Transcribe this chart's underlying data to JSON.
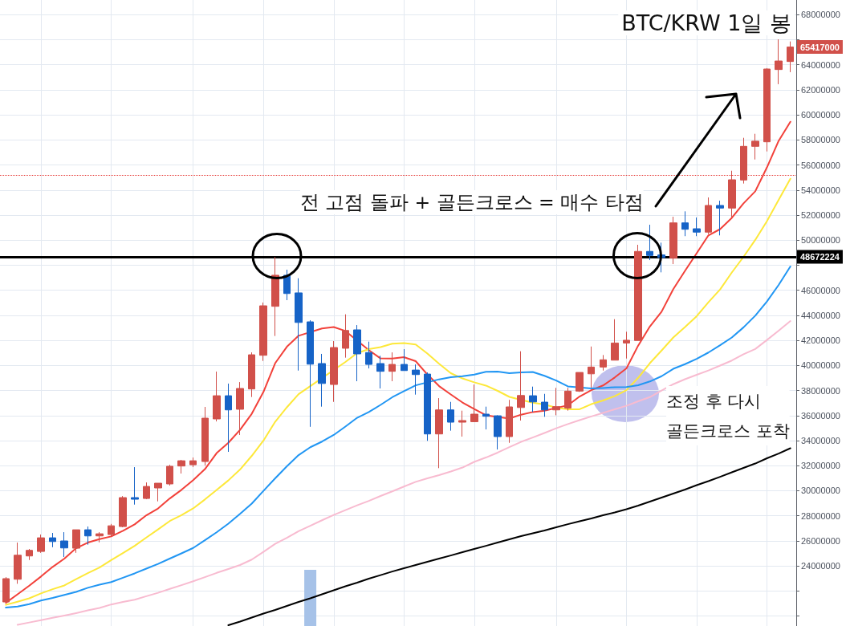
{
  "chart_data": {
    "type": "candlestick",
    "title": "BTC/KRW 1일 봉",
    "categories": [
      null,
      null,
      null,
      null,
      null,
      null,
      null,
      null,
      null,
      null,
      null,
      null,
      null,
      null,
      null,
      null,
      null,
      null,
      null,
      null,
      null,
      null,
      null,
      null,
      null,
      null,
      null,
      null,
      null,
      null,
      null,
      null,
      null,
      null,
      null,
      null,
      null,
      null,
      null,
      null,
      null,
      null,
      null,
      null,
      null,
      null,
      null,
      null,
      null,
      null,
      null,
      null,
      null,
      null,
      null,
      null,
      null,
      null,
      null,
      null,
      null,
      null,
      null,
      null,
      null,
      null,
      null,
      null
    ],
    "ohlc": [
      [
        21120000,
        23100000,
        21120000,
        22980000
      ],
      [
        22930000,
        25860000,
        22570000,
        24850000
      ],
      [
        24790000,
        25350000,
        24470000,
        25240000
      ],
      [
        25150000,
        26500000,
        25040000,
        26240000
      ],
      [
        26240000,
        26630000,
        25490000,
        25940000
      ],
      [
        25990000,
        26690000,
        24710000,
        25430000
      ],
      [
        25410000,
        26880000,
        25040000,
        26880000
      ],
      [
        26880000,
        27140000,
        25690000,
        26390000
      ],
      [
        26390000,
        26690000,
        25880000,
        26560000
      ],
      [
        26500000,
        27350000,
        26350000,
        27200000
      ],
      [
        27140000,
        29570000,
        27080000,
        29450000
      ],
      [
        29450000,
        31880000,
        28890000,
        29320000
      ],
      [
        29380000,
        30660000,
        29320000,
        30340000
      ],
      [
        30220000,
        30600000,
        29150000,
        30600000
      ],
      [
        30540000,
        32070000,
        30410000,
        31950000
      ],
      [
        31970000,
        32460000,
        31370000,
        32390000
      ],
      [
        32070000,
        32650000,
        31880000,
        32390000
      ],
      [
        32330000,
        36690000,
        32010000,
        35790000
      ],
      [
        35730000,
        39510000,
        35530000,
        37580000
      ],
      [
        37580000,
        38550000,
        33100000,
        36450000
      ],
      [
        36500000,
        38670000,
        34450000,
        38160000
      ],
      [
        38120000,
        41040000,
        37480000,
        40850000
      ],
      [
        40810000,
        45020000,
        40360000,
        44760000
      ],
      [
        44720000,
        48650000,
        42350000,
        47200000
      ],
      [
        47200000,
        47640000,
        45210000,
        45740000
      ],
      [
        45790000,
        46960000,
        39590000,
        43430000
      ],
      [
        43480000,
        43610000,
        35100000,
        40100000
      ],
      [
        40150000,
        40920000,
        36710000,
        38560000
      ],
      [
        38480000,
        41940000,
        37090000,
        41430000
      ],
      [
        41370000,
        44080000,
        40620000,
        42790000
      ],
      [
        42840000,
        43220000,
        38740000,
        40920000
      ],
      [
        41030000,
        41900000,
        39760000,
        40080000
      ],
      [
        40150000,
        40770000,
        38160000,
        39530000
      ],
      [
        39530000,
        41040000,
        38740000,
        40080000
      ],
      [
        40080000,
        41300000,
        39590000,
        39590000
      ],
      [
        39630000,
        40080000,
        37670000,
        39270000
      ],
      [
        39310000,
        39440000,
        33980000,
        34530000
      ],
      [
        34530000,
        37390000,
        31800000,
        36450000
      ],
      [
        36450000,
        37090000,
        34790000,
        35470000
      ],
      [
        35470000,
        36390000,
        34320000,
        35600000
      ],
      [
        35510000,
        38480000,
        35490000,
        36110000
      ],
      [
        36110000,
        36710000,
        34890000,
        35940000
      ],
      [
        35980000,
        36020000,
        33290000,
        34320000
      ],
      [
        34320000,
        37250000,
        33820000,
        36690000
      ],
      [
        36640000,
        41130000,
        35600000,
        37600000
      ],
      [
        37580000,
        38310000,
        36280000,
        37090000
      ],
      [
        37070000,
        37730000,
        35900000,
        36450000
      ],
      [
        36450000,
        38210000,
        36020000,
        36710000
      ],
      [
        36600000,
        38210000,
        36390000,
        37950000
      ],
      [
        37950000,
        39440000,
        37880000,
        39440000
      ],
      [
        39330000,
        41510000,
        38210000,
        39870000
      ],
      [
        39870000,
        40830000,
        39590000,
        40450000
      ],
      [
        40420000,
        43690000,
        40420000,
        41790000
      ],
      [
        41790000,
        42690000,
        40550000,
        42010000
      ],
      [
        41990000,
        49630000,
        41990000,
        49100000
      ],
      [
        49100000,
        51230000,
        48410000,
        48780000
      ],
      [
        48820000,
        49800000,
        47430000,
        48610000
      ],
      [
        48560000,
        51870000,
        48090000,
        51380000
      ],
      [
        51380000,
        52300000,
        50320000,
        50870000
      ],
      [
        50910000,
        51810000,
        50320000,
        50640000
      ],
      [
        50640000,
        53410000,
        50480000,
        52770000
      ],
      [
        52770000,
        53150000,
        50380000,
        52560000
      ],
      [
        52560000,
        55540000,
        51830000,
        54820000
      ],
      [
        54800000,
        58170000,
        54520000,
        57490000
      ],
      [
        57490000,
        58490000,
        56440000,
        57900000
      ],
      [
        57850000,
        63730000,
        57080000,
        63660000
      ],
      [
        63620000,
        66030000,
        62450000,
        64300000
      ],
      [
        64260000,
        65860000,
        63410000,
        65417000
      ]
    ],
    "colors": [
      "#d1504a",
      "#d1504a",
      "#d1504a",
      "#d1504a",
      "#1663c7",
      "#1663c7",
      "#d1504a",
      "#1663c7",
      "#d1504a",
      "#d1504a",
      "#d1504a",
      "#1663c7",
      "#d1504a",
      "#d1504a",
      "#d1504a",
      "#d1504a",
      "#d1504a",
      "#d1504a",
      "#d1504a",
      "#1663c7",
      "#d1504a",
      "#d1504a",
      "#d1504a",
      "#d1504a",
      "#1663c7",
      "#1663c7",
      "#1663c7",
      "#1663c7",
      "#d1504a",
      "#d1504a",
      "#1663c7",
      "#1663c7",
      "#1663c7",
      "#d1504a",
      "#1663c7",
      "#1663c7",
      "#1663c7",
      "#d1504a",
      "#1663c7",
      "#d1504a",
      "#d1504a",
      "#1663c7",
      "#1663c7",
      "#d1504a",
      "#d1504a",
      "#1663c7",
      "#1663c7",
      "#d1504a",
      "#d1504a",
      "#d1504a",
      "#d1504a",
      "#d1504a",
      "#d1504a",
      "#d1504a",
      "#d1504a",
      "#1663c7",
      "#1663c7",
      "#d1504a",
      "#1663c7",
      "#1663c7",
      "#d1504a",
      "#1663c7",
      "#d1504a",
      "#d1504a",
      "#d1504a",
      "#d1504a",
      "#d1504a",
      "#d1504a"
    ],
    "series": [
      {
        "type": "bar",
        "color": "#a6c2e8",
        "values": [
          null,
          null,
          null,
          null,
          null,
          null,
          null,
          null,
          null,
          null,
          null,
          null,
          null,
          null,
          null,
          null,
          null,
          null,
          null,
          null,
          null,
          null,
          null,
          null,
          null,
          null,
          23680000,
          null,
          null,
          null,
          null,
          null,
          null,
          null,
          null,
          null,
          null,
          null,
          null,
          null,
          null,
          null,
          null,
          null,
          null,
          null,
          null,
          null,
          null,
          null,
          null,
          null,
          null,
          null,
          null,
          null,
          null,
          null,
          null,
          null,
          null,
          null,
          null,
          null,
          null,
          null,
          null,
          null
        ]
      },
      {
        "type": "line",
        "color": "#f2413a",
        "values": [
          21050000,
          21730000,
          22420000,
          23150000,
          23920000,
          24580000,
          25410000,
          25860000,
          26130000,
          26350000,
          26800000,
          27310000,
          28040000,
          28580000,
          29380000,
          30070000,
          30840000,
          31720000,
          33000000,
          33820000,
          34860000,
          36140000,
          37890000,
          40180000,
          41490000,
          42370000,
          null,
          42950000,
          43060000,
          42750000,
          null,
          41220000,
          40560000,
          40550000,
          40660000,
          40340000,
          39280000,
          38350000,
          37680000,
          37040000,
          36520000,
          36020000,
          null,
          35760000,
          36070000,
          36280000,
          36390000,
          36600000,
          36820000,
          37520000,
          38030000,
          38400000,
          39040000,
          39760000,
          41580000,
          43110000,
          44290000,
          46090000,
          47550000,
          48960000,
          50380000,
          50880000,
          51780000,
          52940000,
          53900000,
          55810000,
          57930000,
          59450000
        ]
      },
      {
        "type": "line",
        "color": "#fde83a",
        "values": [
          20890000,
          21140000,
          21410000,
          21800000,
          22140000,
          22440000,
          22940000,
          23420000,
          23870000,
          24460000,
          25020000,
          25600000,
          26260000,
          26910000,
          27580000,
          28050000,
          28590000,
          29300000,
          30060000,
          30820000,
          31690000,
          32780000,
          34000000,
          35500000,
          36660000,
          37710000,
          38350000,
          null,
          null,
          40280000,
          40980000,
          41300000,
          41460000,
          41730000,
          41790000,
          41670000,
          40950000,
          40130000,
          39380000,
          38960000,
          38650000,
          38390000,
          37970000,
          37490000,
          37250000,
          37030000,
          36880000,
          36620000,
          36500000,
          36500000,
          36910000,
          37200000,
          37550000,
          38030000,
          39010000,
          40180000,
          41190000,
          42230000,
          43060000,
          43930000,
          45040000,
          46070000,
          47420000,
          48670000,
          50020000,
          51520000,
          53220000,
          54900000
        ]
      },
      {
        "type": "line",
        "color": "#2196f3",
        "values": [
          20670000,
          20750000,
          20950000,
          21230000,
          21440000,
          21680000,
          21920000,
          22250000,
          22500000,
          22710000,
          23050000,
          23400000,
          23780000,
          24160000,
          24580000,
          25000000,
          25430000,
          26050000,
          26680000,
          27370000,
          28150000,
          28970000,
          29990000,
          30990000,
          31950000,
          32840000,
          33470000,
          33920000,
          34450000,
          35120000,
          35820000,
          36280000,
          36850000,
          37460000,
          37940000,
          38410000,
          null,
          38890000,
          39060000,
          39140000,
          39270000,
          39490000,
          39510000,
          39380000,
          39440000,
          39480000,
          39170000,
          38800000,
          38330000,
          null,
          38160000,
          38200000,
          38260000,
          38270000,
          38420000,
          38720000,
          39140000,
          39730000,
          40100000,
          40530000,
          41030000,
          41610000,
          42230000,
          43040000,
          43970000,
          45110000,
          46430000,
          47900000
        ]
      },
      {
        "type": "line",
        "color": "#f8bbd0",
        "values": [
          null,
          19290000,
          19480000,
          19660000,
          19850000,
          20030000,
          20230000,
          20450000,
          20640000,
          20920000,
          21120000,
          21300000,
          21580000,
          21850000,
          22160000,
          22460000,
          22770000,
          23100000,
          23440000,
          23750000,
          24070000,
          24500000,
          25120000,
          25760000,
          26240000,
          26770000,
          27200000,
          27640000,
          28060000,
          28450000,
          28830000,
          29190000,
          29580000,
          29950000,
          30330000,
          30710000,
          30990000,
          31240000,
          31530000,
          31850000,
          32300000,
          32650000,
          33040000,
          33480000,
          33900000,
          34250000,
          34610000,
          34980000,
          35320000,
          35630000,
          35930000,
          36210000,
          36500000,
          36780000,
          37140000,
          37470000,
          38000000,
          38500000,
          38900000,
          39250000,
          39600000,
          39990000,
          40390000,
          40890000,
          41310000,
          42030000,
          42780000,
          43540000
        ]
      },
      {
        "type": "line",
        "color": "#000000",
        "values": [
          null,
          null,
          null,
          null,
          null,
          null,
          null,
          null,
          null,
          null,
          null,
          null,
          null,
          null,
          null,
          null,
          null,
          null,
          null,
          19260000,
          19550000,
          19870000,
          20190000,
          20480000,
          20800000,
          21120000,
          21410000,
          21730000,
          22050000,
          22370000,
          22660000,
          22980000,
          23260000,
          23550000,
          23810000,
          24070000,
          24320000,
          24580000,
          24830000,
          25090000,
          25350000,
          25600000,
          25860000,
          26120000,
          26370000,
          26600000,
          26820000,
          27080000,
          27330000,
          27560000,
          27780000,
          28040000,
          28260000,
          28520000,
          28810000,
          29130000,
          29450000,
          29770000,
          30090000,
          30440000,
          30760000,
          31110000,
          31470000,
          31820000,
          32170000,
          32590000,
          32970000,
          33390000
        ]
      }
    ],
    "ylim": [
      19200000,
      69170000
    ],
    "yticks": [
      {
        "value": 20000000,
        "label": null
      },
      {
        "value": 22000000,
        "label": null
      },
      24000000,
      26000000,
      28000000,
      30000000,
      32000000,
      34000000,
      36000000,
      38000000,
      40000000,
      42000000,
      44000000,
      46000000,
      {
        "value": 48000000,
        "label": null
      },
      50000000,
      52000000,
      54000000,
      56000000,
      58000000,
      60000000,
      62000000,
      64000000,
      {
        "value": 66000000,
        "label": null
      },
      68000000
    ],
    "ref_lines": [
      {
        "axis": "y",
        "value": 48672224,
        "label": "48672224",
        "color": "#000000",
        "line_style": "solid"
      },
      {
        "axis": "y",
        "value": 55190000,
        "color": "#e53935",
        "line_style": "dotted"
      }
    ],
    "annotations": [
      "전 고점 돌파 + 골든크로스 = 매수 타점",
      "조정 후 다시\n골든크로스 포착",
      "65417000"
    ],
    "grid": true,
    "tick_labels": "y",
    "marker": "none"
  }
}
